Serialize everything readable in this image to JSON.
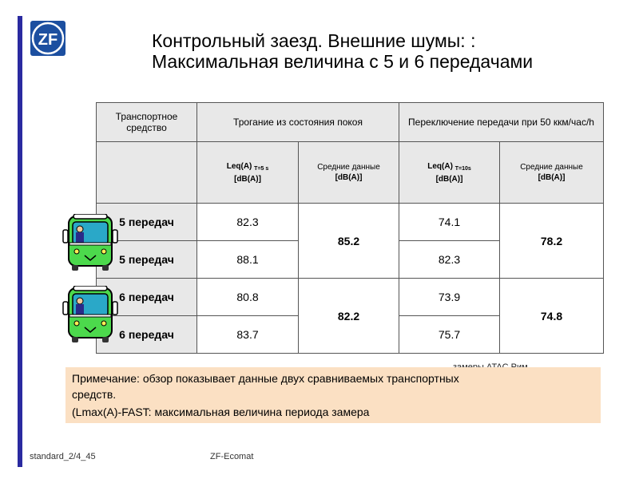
{
  "title": "Контрольный заезд. Внешние шумы: : Максимальная величина с 5 и 6 передачами",
  "table": {
    "headers": {
      "vehicle": "Транспортное средство",
      "start": "Трогание из состояния покоя",
      "shift": "Переключение передачи при 50 ккм/час/h"
    },
    "sub": {
      "leq_a": "Leq(A)",
      "leq_start_sub": "T=5 s",
      "leq_shift_sub": "T=10s",
      "unit": "[dB(A)]",
      "avg_label": "Средние данные",
      "avg_unit": "[dB(A)]"
    },
    "rows": [
      {
        "label": "5 передач",
        "start": "82.3",
        "shift": "74.1"
      },
      {
        "label": "5 передач",
        "start": "88.1",
        "shift": "82.3"
      },
      {
        "label": "6 передач",
        "start": "80.8",
        "shift": "73.9"
      },
      {
        "label": "6 передач",
        "start": "83.7",
        "shift": "75.7"
      }
    ],
    "avg_5": {
      "start": "85.2",
      "shift": "78.2"
    },
    "avg_6": {
      "start": "82.2",
      "shift": "74.8"
    }
  },
  "source": "замеры ATAC Рим",
  "note": {
    "line1": "Примечание:  обзор показывает данные двух сравниваемых  транспортных",
    "line2": "средств.",
    "line3": "(Lmax(A)-FAST:  максимальная  величина  периода  замера"
  },
  "footer": {
    "left": "standard_2/4_45",
    "middle": "ZF-Ecomat"
  },
  "logo": {
    "text": "ZF"
  },
  "icons": {
    "bus": "bus-icon",
    "logo": "zf-logo"
  }
}
